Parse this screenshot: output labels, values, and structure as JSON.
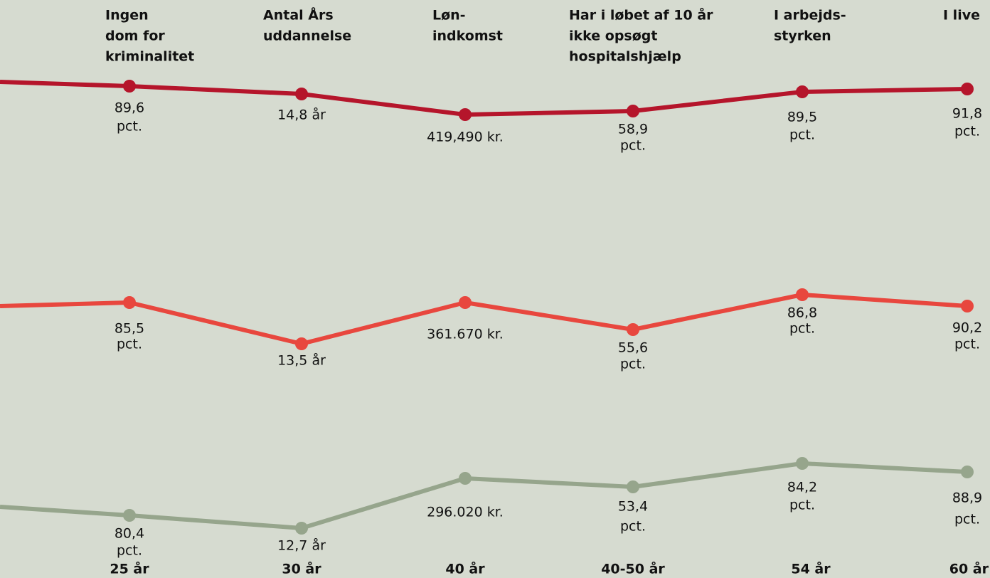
{
  "columns": [
    {
      "header": [
        "Ingen",
        "dom for",
        "kriminalitet"
      ],
      "age": "25 år"
    },
    {
      "header": [
        "Antal Års",
        "uddannelse"
      ],
      "age": "30 år"
    },
    {
      "header": [
        "Løn-",
        "indkomst"
      ],
      "age": "40 år"
    },
    {
      "header": [
        "Har i løbet af 10 år",
        "ikke opsøgt",
        "hospitalshjælp"
      ],
      "age": "40-50 år"
    },
    {
      "header": [
        "I arbejds-",
        "styrken"
      ],
      "age": "54 år"
    },
    {
      "header": [
        "I live"
      ],
      "age": "60 år"
    }
  ],
  "rows": [
    {
      "color": "#b5152b",
      "labels": [
        [
          "89,6",
          "pct."
        ],
        [
          "14,8 år"
        ],
        [
          "419,490 kr."
        ],
        [
          "58,9",
          "pct."
        ],
        [
          "89,5",
          "pct."
        ],
        [
          "91,8",
          "pct."
        ]
      ]
    },
    {
      "color": "#e8473e",
      "labels": [
        [
          "85,5",
          "pct."
        ],
        [
          "13,5 år"
        ],
        [
          "361.670 kr."
        ],
        [
          "55,6",
          "pct."
        ],
        [
          "86,8",
          "pct."
        ],
        [
          "90,2",
          "pct."
        ]
      ]
    },
    {
      "color": "#96a58c",
      "labels": [
        [
          "80,4",
          "pct."
        ],
        [
          "12,7 år"
        ],
        [
          "296.020 kr."
        ],
        [
          "53,4",
          "pct."
        ],
        [
          "84,2",
          "pct."
        ],
        [
          "88,9",
          "pct."
        ]
      ]
    }
  ]
}
